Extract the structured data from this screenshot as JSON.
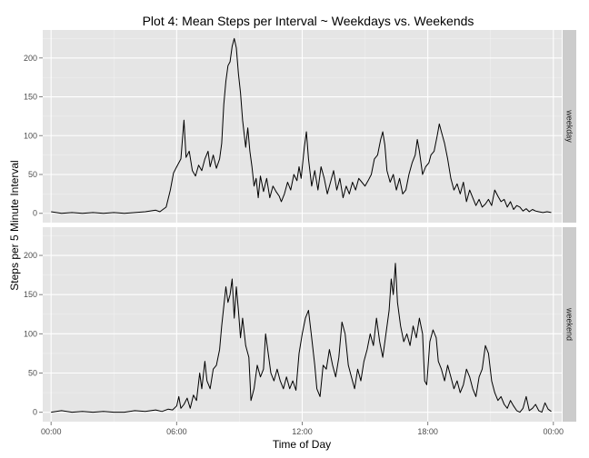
{
  "chart_data": {
    "type": "line",
    "title": "Plot 4: Mean Steps per Interval ~ Weekdays vs. Weekends",
    "xlabel": "Time of Day",
    "ylabel": "Steps per 5 Minute Interval",
    "x_unit": "hours",
    "xlim": [
      -0.4,
      24.4
    ],
    "ylim": [
      -12,
      236
    ],
    "x_ticks": [
      {
        "value": 0,
        "label": "00:00"
      },
      {
        "value": 6,
        "label": "06:00"
      },
      {
        "value": 12,
        "label": "12:00"
      },
      {
        "value": 18,
        "label": "18:00"
      },
      {
        "value": 24,
        "label": "00:00"
      }
    ],
    "y_ticks": [
      0,
      50,
      100,
      150,
      200
    ],
    "grid": true,
    "background": "#e5e5e5",
    "grid_color": "#ffffff",
    "strip_color": "#cccccc",
    "line_color": "#000000",
    "facets": [
      {
        "label": "weekday",
        "points": [
          [
            0,
            2
          ],
          [
            0.5,
            0
          ],
          [
            1,
            1
          ],
          [
            1.5,
            0
          ],
          [
            2,
            1
          ],
          [
            2.5,
            0
          ],
          [
            3,
            1
          ],
          [
            3.5,
            0
          ],
          [
            4,
            1
          ],
          [
            4.5,
            2
          ],
          [
            5,
            4
          ],
          [
            5.2,
            2
          ],
          [
            5.5,
            8
          ],
          [
            5.7,
            30
          ],
          [
            5.85,
            52
          ],
          [
            6,
            60
          ],
          [
            6.2,
            70
          ],
          [
            6.35,
            120
          ],
          [
            6.45,
            72
          ],
          [
            6.6,
            80
          ],
          [
            6.75,
            55
          ],
          [
            6.9,
            48
          ],
          [
            7.05,
            62
          ],
          [
            7.2,
            55
          ],
          [
            7.35,
            70
          ],
          [
            7.5,
            80
          ],
          [
            7.6,
            60
          ],
          [
            7.75,
            75
          ],
          [
            7.9,
            58
          ],
          [
            8.05,
            70
          ],
          [
            8.15,
            90
          ],
          [
            8.25,
            140
          ],
          [
            8.35,
            170
          ],
          [
            8.45,
            190
          ],
          [
            8.55,
            195
          ],
          [
            8.65,
            215
          ],
          [
            8.75,
            225
          ],
          [
            8.85,
            213
          ],
          [
            8.95,
            180
          ],
          [
            9.05,
            155
          ],
          [
            9.15,
            120
          ],
          [
            9.3,
            85
          ],
          [
            9.4,
            110
          ],
          [
            9.5,
            80
          ],
          [
            9.6,
            60
          ],
          [
            9.7,
            35
          ],
          [
            9.8,
            45
          ],
          [
            9.9,
            20
          ],
          [
            10,
            48
          ],
          [
            10.15,
            28
          ],
          [
            10.3,
            45
          ],
          [
            10.45,
            20
          ],
          [
            10.6,
            35
          ],
          [
            10.75,
            28
          ],
          [
            10.9,
            22
          ],
          [
            11,
            15
          ],
          [
            11.15,
            25
          ],
          [
            11.3,
            40
          ],
          [
            11.45,
            30
          ],
          [
            11.6,
            50
          ],
          [
            11.75,
            42
          ],
          [
            11.85,
            60
          ],
          [
            11.95,
            45
          ],
          [
            12.1,
            85
          ],
          [
            12.2,
            105
          ],
          [
            12.3,
            70
          ],
          [
            12.45,
            35
          ],
          [
            12.6,
            55
          ],
          [
            12.75,
            30
          ],
          [
            12.9,
            60
          ],
          [
            13.05,
            45
          ],
          [
            13.2,
            25
          ],
          [
            13.35,
            40
          ],
          [
            13.5,
            55
          ],
          [
            13.65,
            30
          ],
          [
            13.8,
            45
          ],
          [
            13.95,
            20
          ],
          [
            14.1,
            35
          ],
          [
            14.25,
            25
          ],
          [
            14.4,
            40
          ],
          [
            14.55,
            30
          ],
          [
            14.7,
            45
          ],
          [
            14.85,
            40
          ],
          [
            15,
            35
          ],
          [
            15.15,
            42
          ],
          [
            15.3,
            50
          ],
          [
            15.45,
            70
          ],
          [
            15.6,
            75
          ],
          [
            15.75,
            95
          ],
          [
            15.85,
            105
          ],
          [
            15.95,
            88
          ],
          [
            16.05,
            55
          ],
          [
            16.2,
            40
          ],
          [
            16.35,
            50
          ],
          [
            16.5,
            30
          ],
          [
            16.65,
            45
          ],
          [
            16.8,
            25
          ],
          [
            16.95,
            30
          ],
          [
            17.1,
            50
          ],
          [
            17.25,
            65
          ],
          [
            17.4,
            75
          ],
          [
            17.5,
            95
          ],
          [
            17.6,
            80
          ],
          [
            17.75,
            50
          ],
          [
            17.9,
            60
          ],
          [
            18.05,
            65
          ],
          [
            18.15,
            75
          ],
          [
            18.3,
            80
          ],
          [
            18.45,
            100
          ],
          [
            18.55,
            115
          ],
          [
            18.65,
            105
          ],
          [
            18.8,
            90
          ],
          [
            18.95,
            70
          ],
          [
            19.1,
            45
          ],
          [
            19.25,
            30
          ],
          [
            19.4,
            38
          ],
          [
            19.55,
            25
          ],
          [
            19.7,
            40
          ],
          [
            19.85,
            15
          ],
          [
            20,
            30
          ],
          [
            20.15,
            20
          ],
          [
            20.3,
            10
          ],
          [
            20.45,
            18
          ],
          [
            20.6,
            8
          ],
          [
            20.75,
            12
          ],
          [
            20.9,
            18
          ],
          [
            21.05,
            10
          ],
          [
            21.2,
            30
          ],
          [
            21.35,
            22
          ],
          [
            21.5,
            15
          ],
          [
            21.65,
            18
          ],
          [
            21.8,
            8
          ],
          [
            21.95,
            15
          ],
          [
            22.1,
            5
          ],
          [
            22.25,
            10
          ],
          [
            22.4,
            8
          ],
          [
            22.55,
            3
          ],
          [
            22.7,
            6
          ],
          [
            22.85,
            2
          ],
          [
            23,
            5
          ],
          [
            23.15,
            3
          ],
          [
            23.3,
            2
          ],
          [
            23.5,
            1
          ],
          [
            23.7,
            2
          ],
          [
            23.9,
            1
          ]
        ]
      },
      {
        "label": "weekend",
        "points": [
          [
            0,
            0
          ],
          [
            0.5,
            2
          ],
          [
            1,
            0
          ],
          [
            1.5,
            1
          ],
          [
            2,
            0
          ],
          [
            2.5,
            1
          ],
          [
            3,
            0
          ],
          [
            3.5,
            0
          ],
          [
            4,
            2
          ],
          [
            4.5,
            1
          ],
          [
            5,
            3
          ],
          [
            5.3,
            1
          ],
          [
            5.6,
            4
          ],
          [
            5.8,
            3
          ],
          [
            6,
            8
          ],
          [
            6.1,
            20
          ],
          [
            6.2,
            5
          ],
          [
            6.35,
            10
          ],
          [
            6.5,
            18
          ],
          [
            6.65,
            5
          ],
          [
            6.8,
            22
          ],
          [
            6.95,
            15
          ],
          [
            7.1,
            50
          ],
          [
            7.2,
            30
          ],
          [
            7.35,
            65
          ],
          [
            7.45,
            40
          ],
          [
            7.6,
            30
          ],
          [
            7.75,
            55
          ],
          [
            7.9,
            60
          ],
          [
            8.05,
            80
          ],
          [
            8.15,
            110
          ],
          [
            8.25,
            135
          ],
          [
            8.35,
            160
          ],
          [
            8.45,
            140
          ],
          [
            8.55,
            150
          ],
          [
            8.65,
            170
          ],
          [
            8.75,
            120
          ],
          [
            8.85,
            160
          ],
          [
            8.95,
            130
          ],
          [
            9.05,
            95
          ],
          [
            9.15,
            120
          ],
          [
            9.3,
            85
          ],
          [
            9.45,
            70
          ],
          [
            9.55,
            15
          ],
          [
            9.7,
            30
          ],
          [
            9.85,
            60
          ],
          [
            10,
            45
          ],
          [
            10.15,
            55
          ],
          [
            10.25,
            100
          ],
          [
            10.35,
            80
          ],
          [
            10.5,
            50
          ],
          [
            10.65,
            40
          ],
          [
            10.8,
            55
          ],
          [
            10.95,
            40
          ],
          [
            11.1,
            30
          ],
          [
            11.25,
            45
          ],
          [
            11.4,
            30
          ],
          [
            11.55,
            40
          ],
          [
            11.7,
            28
          ],
          [
            11.85,
            75
          ],
          [
            12,
            100
          ],
          [
            12.15,
            120
          ],
          [
            12.3,
            130
          ],
          [
            12.45,
            95
          ],
          [
            12.6,
            60
          ],
          [
            12.7,
            30
          ],
          [
            12.85,
            20
          ],
          [
            13,
            60
          ],
          [
            13.15,
            55
          ],
          [
            13.3,
            80
          ],
          [
            13.45,
            60
          ],
          [
            13.6,
            45
          ],
          [
            13.75,
            70
          ],
          [
            13.9,
            115
          ],
          [
            14.05,
            100
          ],
          [
            14.2,
            60
          ],
          [
            14.35,
            45
          ],
          [
            14.5,
            30
          ],
          [
            14.65,
            55
          ],
          [
            14.8,
            40
          ],
          [
            14.95,
            65
          ],
          [
            15.1,
            80
          ],
          [
            15.25,
            100
          ],
          [
            15.4,
            85
          ],
          [
            15.55,
            120
          ],
          [
            15.7,
            90
          ],
          [
            15.85,
            70
          ],
          [
            16,
            100
          ],
          [
            16.15,
            130
          ],
          [
            16.25,
            170
          ],
          [
            16.35,
            150
          ],
          [
            16.45,
            190
          ],
          [
            16.55,
            140
          ],
          [
            16.7,
            110
          ],
          [
            16.85,
            90
          ],
          [
            17,
            100
          ],
          [
            17.15,
            85
          ],
          [
            17.3,
            110
          ],
          [
            17.45,
            95
          ],
          [
            17.6,
            120
          ],
          [
            17.75,
            100
          ],
          [
            17.85,
            40
          ],
          [
            17.95,
            35
          ],
          [
            18.1,
            90
          ],
          [
            18.25,
            105
          ],
          [
            18.4,
            95
          ],
          [
            18.5,
            65
          ],
          [
            18.65,
            55
          ],
          [
            18.8,
            40
          ],
          [
            18.95,
            60
          ],
          [
            19.1,
            45
          ],
          [
            19.25,
            30
          ],
          [
            19.4,
            40
          ],
          [
            19.55,
            25
          ],
          [
            19.7,
            35
          ],
          [
            19.85,
            55
          ],
          [
            20,
            45
          ],
          [
            20.15,
            30
          ],
          [
            20.3,
            20
          ],
          [
            20.45,
            45
          ],
          [
            20.6,
            55
          ],
          [
            20.75,
            85
          ],
          [
            20.9,
            75
          ],
          [
            21.05,
            40
          ],
          [
            21.2,
            25
          ],
          [
            21.35,
            15
          ],
          [
            21.5,
            20
          ],
          [
            21.65,
            10
          ],
          [
            21.8,
            5
          ],
          [
            21.95,
            15
          ],
          [
            22.1,
            8
          ],
          [
            22.25,
            2
          ],
          [
            22.4,
            0
          ],
          [
            22.55,
            5
          ],
          [
            22.7,
            20
          ],
          [
            22.85,
            2
          ],
          [
            23,
            5
          ],
          [
            23.15,
            10
          ],
          [
            23.3,
            2
          ],
          [
            23.45,
            0
          ],
          [
            23.6,
            12
          ],
          [
            23.75,
            4
          ],
          [
            23.9,
            1
          ]
        ]
      }
    ]
  }
}
